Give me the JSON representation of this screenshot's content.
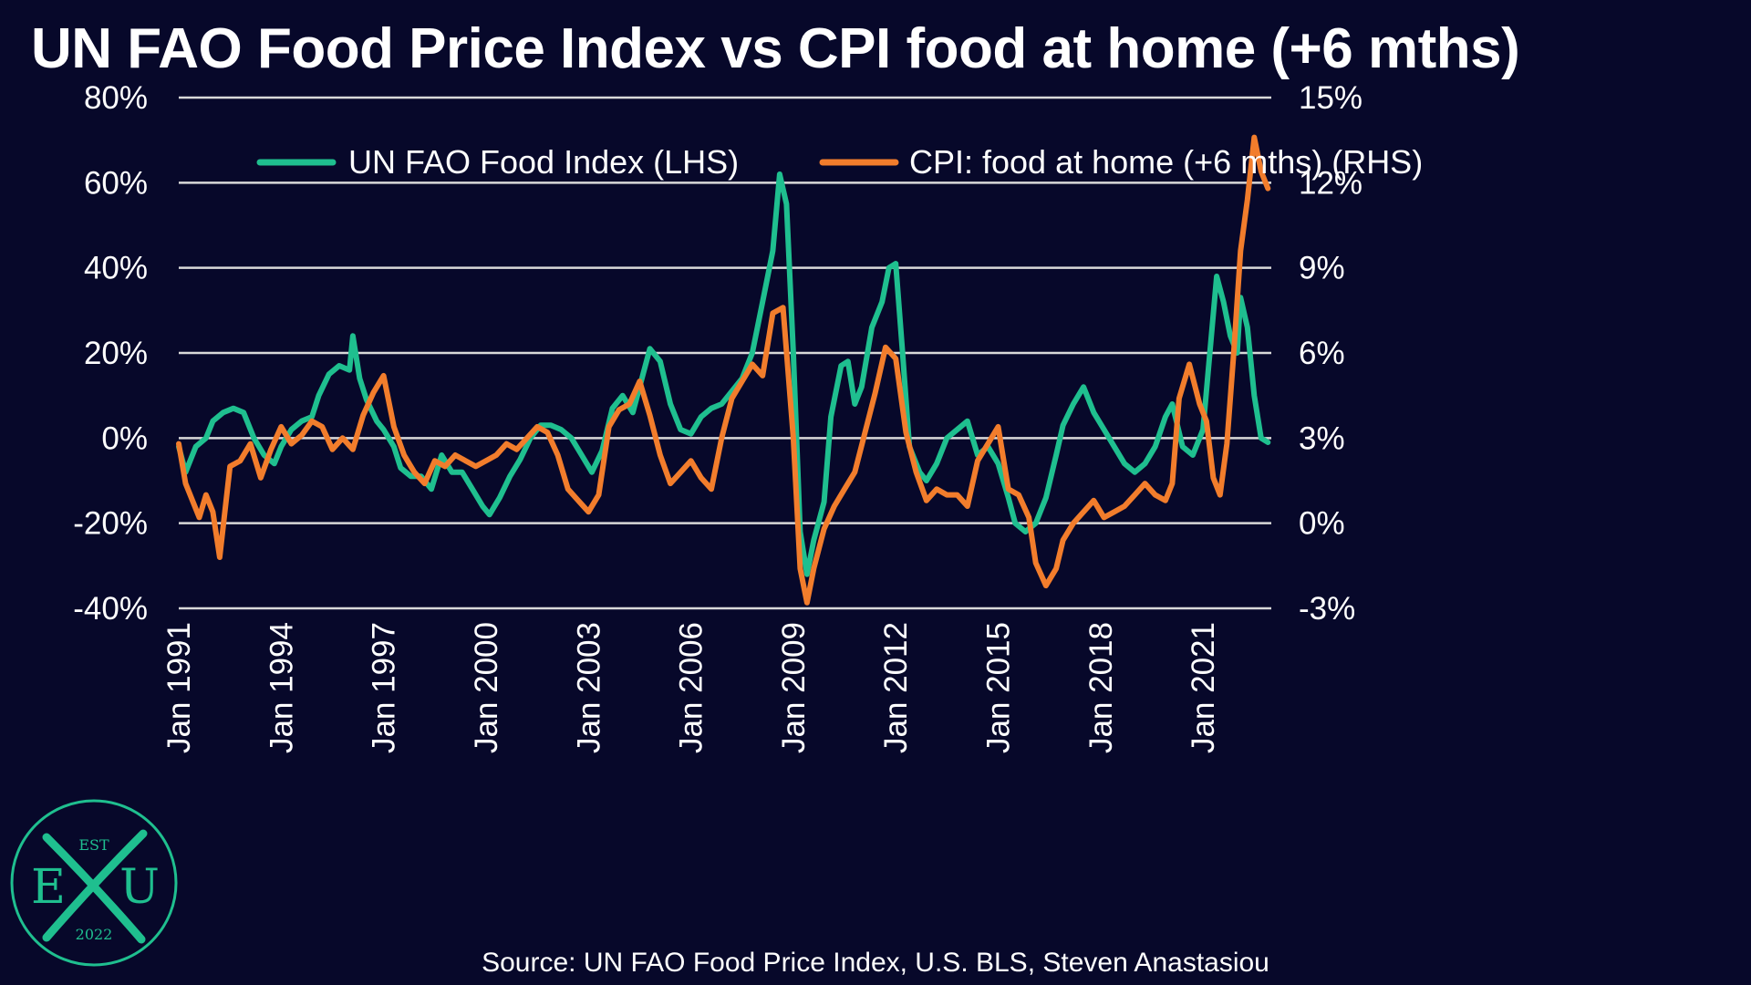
{
  "chart_data": {
    "type": "line",
    "title": "UN FAO Food Price Index vs CPI food at home (+6 mths)",
    "source": "Source: UN FAO Food Price Index, U.S. BLS, Steven Anastasiou",
    "x_start": 1991.0,
    "x_end": 2023.0,
    "x_ticks": [
      {
        "value": 1991,
        "label": "Jan 1991"
      },
      {
        "value": 1994,
        "label": "Jan 1994"
      },
      {
        "value": 1997,
        "label": "Jan 1997"
      },
      {
        "value": 2000,
        "label": "Jan 2000"
      },
      {
        "value": 2003,
        "label": "Jan 2003"
      },
      {
        "value": 2006,
        "label": "Jan 2006"
      },
      {
        "value": 2009,
        "label": "Jan 2009"
      },
      {
        "value": 2012,
        "label": "Jan 2012"
      },
      {
        "value": 2015,
        "label": "Jan 2015"
      },
      {
        "value": 2018,
        "label": "Jan 2018"
      },
      {
        "value": 2021,
        "label": "Jan 2021"
      }
    ],
    "y_left": {
      "min": -40,
      "max": 80,
      "ticks": [
        {
          "value": 80,
          "label": "80%"
        },
        {
          "value": 60,
          "label": "60%"
        },
        {
          "value": 40,
          "label": "40%"
        },
        {
          "value": 20,
          "label": "20%"
        },
        {
          "value": 0,
          "label": "0%"
        },
        {
          "value": -20,
          "label": "-20%"
        },
        {
          "value": -40,
          "label": "-40%"
        }
      ]
    },
    "y_right": {
      "min": -3,
      "max": 15,
      "ticks": [
        {
          "value": 15,
          "label": "15%"
        },
        {
          "value": 12,
          "label": "12%"
        },
        {
          "value": 9,
          "label": "9%"
        },
        {
          "value": 6,
          "label": "6%"
        },
        {
          "value": 3,
          "label": "3%"
        },
        {
          "value": 0,
          "label": "0%"
        },
        {
          "value": -3,
          "label": "-3%"
        }
      ]
    },
    "grid": true,
    "legend_position": "top",
    "series": [
      {
        "name": "UN FAO Food Index (LHS)",
        "axis": "left",
        "color": "#1fbf8f",
        "points": [
          [
            1991.0,
            -2
          ],
          [
            1991.2,
            -8
          ],
          [
            1991.5,
            -2
          ],
          [
            1991.8,
            0
          ],
          [
            1992.0,
            4
          ],
          [
            1992.3,
            6
          ],
          [
            1992.6,
            7
          ],
          [
            1992.9,
            6
          ],
          [
            1993.2,
            0
          ],
          [
            1993.5,
            -4
          ],
          [
            1993.8,
            -6
          ],
          [
            1994.0,
            -2
          ],
          [
            1994.3,
            2
          ],
          [
            1994.6,
            4
          ],
          [
            1994.9,
            5
          ],
          [
            1995.1,
            10
          ],
          [
            1995.4,
            15
          ],
          [
            1995.7,
            17
          ],
          [
            1996.0,
            16
          ],
          [
            1996.1,
            24
          ],
          [
            1996.3,
            14
          ],
          [
            1996.5,
            9
          ],
          [
            1996.8,
            4
          ],
          [
            1997.0,
            2
          ],
          [
            1997.3,
            -2
          ],
          [
            1997.5,
            -7
          ],
          [
            1997.8,
            -9
          ],
          [
            1998.1,
            -9
          ],
          [
            1998.4,
            -12
          ],
          [
            1998.7,
            -4
          ],
          [
            1999.0,
            -8
          ],
          [
            1999.3,
            -8
          ],
          [
            1999.6,
            -12
          ],
          [
            1999.9,
            -16
          ],
          [
            2000.1,
            -18
          ],
          [
            2000.4,
            -14
          ],
          [
            2000.7,
            -9
          ],
          [
            2001.0,
            -5
          ],
          [
            2001.3,
            0
          ],
          [
            2001.6,
            3
          ],
          [
            2001.9,
            3
          ],
          [
            2002.2,
            2
          ],
          [
            2002.5,
            0
          ],
          [
            2002.8,
            -4
          ],
          [
            2003.1,
            -8
          ],
          [
            2003.4,
            -3
          ],
          [
            2003.7,
            7
          ],
          [
            2004.0,
            10
          ],
          [
            2004.3,
            6
          ],
          [
            2004.6,
            15
          ],
          [
            2004.8,
            21
          ],
          [
            2005.1,
            18
          ],
          [
            2005.4,
            8
          ],
          [
            2005.7,
            2
          ],
          [
            2006.0,
            1
          ],
          [
            2006.3,
            5
          ],
          [
            2006.6,
            7
          ],
          [
            2006.9,
            8
          ],
          [
            2007.2,
            11
          ],
          [
            2007.5,
            14
          ],
          [
            2007.8,
            20
          ],
          [
            2008.1,
            32
          ],
          [
            2008.4,
            44
          ],
          [
            2008.6,
            62
          ],
          [
            2008.8,
            55
          ],
          [
            2009.0,
            20
          ],
          [
            2009.2,
            -22
          ],
          [
            2009.4,
            -32
          ],
          [
            2009.6,
            -24
          ],
          [
            2009.9,
            -15
          ],
          [
            2010.1,
            5
          ],
          [
            2010.4,
            17
          ],
          [
            2010.6,
            18
          ],
          [
            2010.8,
            8
          ],
          [
            2011.0,
            12
          ],
          [
            2011.3,
            26
          ],
          [
            2011.6,
            32
          ],
          [
            2011.8,
            40
          ],
          [
            2012.0,
            41
          ],
          [
            2012.2,
            20
          ],
          [
            2012.4,
            -2
          ],
          [
            2012.7,
            -8
          ],
          [
            2012.9,
            -10
          ],
          [
            2013.2,
            -6
          ],
          [
            2013.5,
            0
          ],
          [
            2013.8,
            2
          ],
          [
            2014.1,
            4
          ],
          [
            2014.4,
            -4
          ],
          [
            2014.7,
            -2
          ],
          [
            2015.0,
            -6
          ],
          [
            2015.3,
            -14
          ],
          [
            2015.5,
            -20
          ],
          [
            2015.8,
            -22
          ],
          [
            2016.1,
            -20
          ],
          [
            2016.4,
            -14
          ],
          [
            2016.7,
            -4
          ],
          [
            2016.9,
            3
          ],
          [
            2017.2,
            8
          ],
          [
            2017.5,
            12
          ],
          [
            2017.8,
            6
          ],
          [
            2018.1,
            2
          ],
          [
            2018.4,
            -2
          ],
          [
            2018.7,
            -6
          ],
          [
            2019.0,
            -8
          ],
          [
            2019.3,
            -6
          ],
          [
            2019.6,
            -2
          ],
          [
            2019.9,
            5
          ],
          [
            2020.1,
            8
          ],
          [
            2020.4,
            -2
          ],
          [
            2020.7,
            -4
          ],
          [
            2021.0,
            2
          ],
          [
            2021.2,
            20
          ],
          [
            2021.4,
            38
          ],
          [
            2021.6,
            32
          ],
          [
            2021.8,
            24
          ],
          [
            2022.0,
            20
          ],
          [
            2022.1,
            33
          ],
          [
            2022.3,
            26
          ],
          [
            2022.5,
            10
          ],
          [
            2022.7,
            0
          ],
          [
            2022.9,
            -1
          ]
        ]
      },
      {
        "name": "CPI: food at home (+6 mths) (RHS)",
        "axis": "right",
        "color": "#f27d2c",
        "points": [
          [
            1991.0,
            2.8
          ],
          [
            1991.2,
            1.4
          ],
          [
            1991.4,
            0.8
          ],
          [
            1991.6,
            0.2
          ],
          [
            1991.8,
            1.0
          ],
          [
            1992.0,
            0.4
          ],
          [
            1992.2,
            -1.2
          ],
          [
            1992.5,
            2.0
          ],
          [
            1992.8,
            2.2
          ],
          [
            1993.1,
            2.8
          ],
          [
            1993.4,
            1.6
          ],
          [
            1993.7,
            2.6
          ],
          [
            1994.0,
            3.4
          ],
          [
            1994.3,
            2.8
          ],
          [
            1994.6,
            3.1
          ],
          [
            1994.9,
            3.6
          ],
          [
            1995.2,
            3.4
          ],
          [
            1995.5,
            2.6
          ],
          [
            1995.8,
            3.0
          ],
          [
            1996.1,
            2.6
          ],
          [
            1996.4,
            3.8
          ],
          [
            1996.7,
            4.6
          ],
          [
            1997.0,
            5.2
          ],
          [
            1997.3,
            3.4
          ],
          [
            1997.6,
            2.4
          ],
          [
            1997.9,
            1.8
          ],
          [
            1998.2,
            1.4
          ],
          [
            1998.5,
            2.2
          ],
          [
            1998.8,
            2.0
          ],
          [
            1999.1,
            2.4
          ],
          [
            1999.4,
            2.2
          ],
          [
            1999.7,
            2.0
          ],
          [
            2000.0,
            2.2
          ],
          [
            2000.3,
            2.4
          ],
          [
            2000.6,
            2.8
          ],
          [
            2000.9,
            2.6
          ],
          [
            2001.2,
            3.0
          ],
          [
            2001.5,
            3.4
          ],
          [
            2001.8,
            3.2
          ],
          [
            2002.1,
            2.4
          ],
          [
            2002.4,
            1.2
          ],
          [
            2002.7,
            0.8
          ],
          [
            2003.0,
            0.4
          ],
          [
            2003.3,
            1.0
          ],
          [
            2003.6,
            3.4
          ],
          [
            2003.9,
            4.0
          ],
          [
            2004.2,
            4.2
          ],
          [
            2004.5,
            5.0
          ],
          [
            2004.8,
            3.8
          ],
          [
            2005.1,
            2.4
          ],
          [
            2005.4,
            1.4
          ],
          [
            2005.7,
            1.8
          ],
          [
            2006.0,
            2.2
          ],
          [
            2006.3,
            1.6
          ],
          [
            2006.6,
            1.2
          ],
          [
            2006.9,
            3.0
          ],
          [
            2007.2,
            4.4
          ],
          [
            2007.5,
            5.0
          ],
          [
            2007.8,
            5.6
          ],
          [
            2008.1,
            5.2
          ],
          [
            2008.4,
            7.4
          ],
          [
            2008.7,
            7.6
          ],
          [
            2009.0,
            3.0
          ],
          [
            2009.2,
            -1.6
          ],
          [
            2009.4,
            -2.8
          ],
          [
            2009.6,
            -1.6
          ],
          [
            2009.9,
            -0.2
          ],
          [
            2010.2,
            0.6
          ],
          [
            2010.5,
            1.2
          ],
          [
            2010.8,
            1.8
          ],
          [
            2011.1,
            3.2
          ],
          [
            2011.4,
            4.6
          ],
          [
            2011.7,
            6.2
          ],
          [
            2012.0,
            5.8
          ],
          [
            2012.3,
            3.2
          ],
          [
            2012.6,
            1.8
          ],
          [
            2012.9,
            0.8
          ],
          [
            2013.2,
            1.2
          ],
          [
            2013.5,
            1.0
          ],
          [
            2013.8,
            1.0
          ],
          [
            2014.1,
            0.6
          ],
          [
            2014.4,
            2.2
          ],
          [
            2014.7,
            2.8
          ],
          [
            2015.0,
            3.4
          ],
          [
            2015.3,
            1.2
          ],
          [
            2015.6,
            1.0
          ],
          [
            2015.9,
            0.2
          ],
          [
            2016.1,
            -1.4
          ],
          [
            2016.4,
            -2.2
          ],
          [
            2016.7,
            -1.6
          ],
          [
            2016.9,
            -0.6
          ],
          [
            2017.2,
            0.0
          ],
          [
            2017.5,
            0.4
          ],
          [
            2017.8,
            0.8
          ],
          [
            2018.1,
            0.2
          ],
          [
            2018.4,
            0.4
          ],
          [
            2018.7,
            0.6
          ],
          [
            2019.0,
            1.0
          ],
          [
            2019.3,
            1.4
          ],
          [
            2019.6,
            1.0
          ],
          [
            2019.9,
            0.8
          ],
          [
            2020.1,
            1.4
          ],
          [
            2020.3,
            4.4
          ],
          [
            2020.6,
            5.6
          ],
          [
            2020.9,
            4.2
          ],
          [
            2021.1,
            3.6
          ],
          [
            2021.3,
            1.6
          ],
          [
            2021.5,
            1.0
          ],
          [
            2021.7,
            2.8
          ],
          [
            2021.9,
            6.0
          ],
          [
            2022.1,
            9.6
          ],
          [
            2022.3,
            11.4
          ],
          [
            2022.5,
            13.6
          ],
          [
            2022.7,
            12.4
          ],
          [
            2022.9,
            11.8
          ]
        ]
      }
    ]
  },
  "logo": {
    "est": "EST",
    "letter_left": "E",
    "letter_right": "U",
    "year": "2022"
  }
}
